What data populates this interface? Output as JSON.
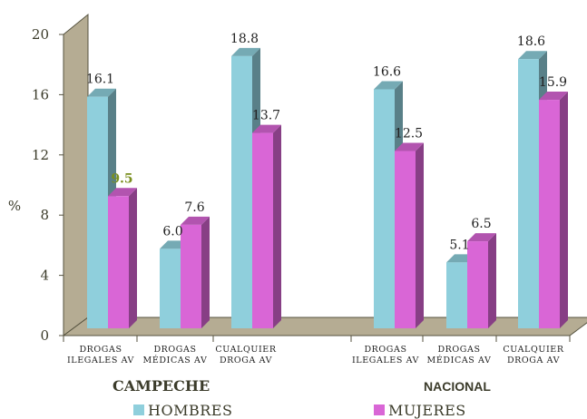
{
  "chart_data": {
    "type": "bar",
    "ylabel": "%",
    "ylim": [
      0,
      20
    ],
    "yticks": [
      0,
      4,
      8,
      12,
      16,
      20
    ],
    "groups": [
      {
        "label": "CAMPECHE",
        "categories": [
          [
            "DROGAS",
            "ILEGALES AV"
          ],
          [
            "DROGAS",
            "MÉDICAS AV"
          ],
          [
            "CUALQUIER",
            "DROGA AV"
          ]
        ]
      },
      {
        "label": "NACIONAL",
        "categories": [
          [
            "DROGAS",
            "ILEGALES AV"
          ],
          [
            "DROGAS",
            "MÉDICAS AV"
          ],
          [
            "CUALQUIER",
            "DROGA AV"
          ]
        ]
      }
    ],
    "series": [
      {
        "name": "HOMBRES",
        "color": "#8fcfdc",
        "values": [
          16.1,
          6.0,
          18.8,
          16.6,
          5.1,
          18.6
        ]
      },
      {
        "name": "MUJERES",
        "color": "#d966d6",
        "values": [
          9.5,
          7.6,
          13.7,
          12.5,
          6.5,
          15.9
        ]
      }
    ],
    "value_labels": [
      [
        "16.1",
        "6.0",
        "18.8",
        "16.6",
        "5.1",
        "18.6"
      ],
      [
        "9.5",
        "7.6",
        "13.7",
        "12.5",
        "6.5",
        "15.9"
      ]
    ],
    "highlight_label": {
      "series": 1,
      "index": 0,
      "color": "#7a8f1f"
    },
    "colors": {
      "wall": "#b5ac93",
      "floor": "#b5ac93"
    },
    "legend_position": "bottom"
  }
}
